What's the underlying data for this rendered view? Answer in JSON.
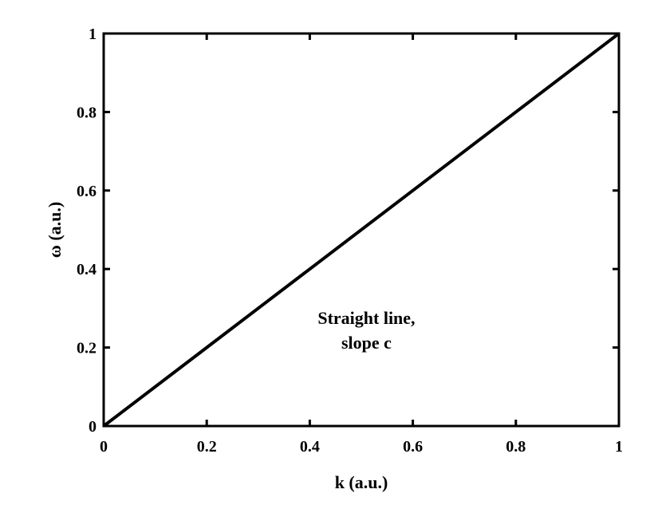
{
  "chart_data": {
    "type": "line",
    "xlabel": "k (a.u.)",
    "ylabel": "ω  (a.u.)",
    "xlim": [
      0,
      1
    ],
    "ylim": [
      0,
      1
    ],
    "xticks": [
      0,
      0.2,
      0.4,
      0.6,
      0.8,
      1
    ],
    "yticks": [
      0,
      0.2,
      0.4,
      0.6,
      0.8,
      1
    ],
    "xtick_labels": [
      "0",
      "0.2",
      "0.4",
      "0.6",
      "0.8",
      "1"
    ],
    "ytick_labels": [
      "0",
      "0.2",
      "0.4",
      "0.6",
      "0.8",
      "1"
    ],
    "grid": false,
    "series": [
      {
        "x": [
          0,
          1
        ],
        "y": [
          0,
          1
        ],
        "color": "#000000"
      }
    ],
    "annotation": {
      "lines": [
        "Straight line,",
        "slope c"
      ],
      "x": 0.51,
      "y": 0.23
    }
  }
}
